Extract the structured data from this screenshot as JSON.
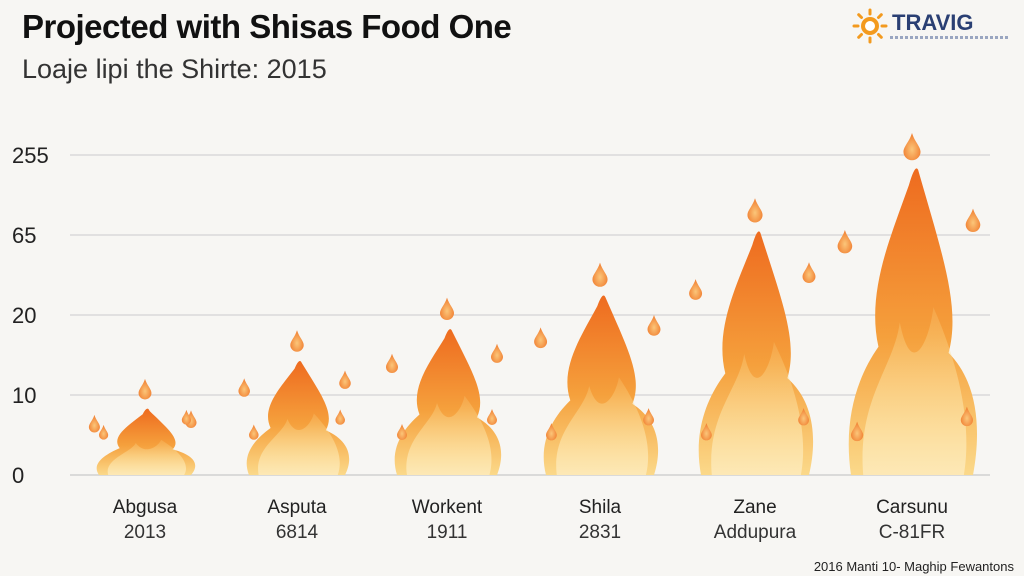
{
  "header": {
    "title": "Projected with Shisas Food One",
    "subtitle": "Loaje lipi the Shirte: 2015"
  },
  "logo": {
    "text": "TRAVIG",
    "icon": "sun-icon",
    "colors": {
      "icon": "#f39a1e",
      "text": "#2a3f73"
    }
  },
  "footnote": "2016 Manti 10- Maghip Fewantons",
  "colors": {
    "flame_top": "#ee6b1f",
    "flame_mid": "#f5a03c",
    "flame_base": "#fbd98a",
    "gridline": "#d4d4d4"
  },
  "chart_data": {
    "type": "bar",
    "title": "Projected with Shisas Food One",
    "subtitle": "Loaje lipi the Shirte: 2015",
    "y_ticks": [
      "0",
      "10",
      "20",
      "65",
      "255"
    ],
    "categories": [
      {
        "label": "Abgusa",
        "sub": "2013"
      },
      {
        "label": "Asputa",
        "sub": "6814"
      },
      {
        "label": "Workent",
        "sub": "1911"
      },
      {
        "label": "Shila",
        "sub": "2831"
      },
      {
        "label": "Zane",
        "sub": "Addupura"
      },
      {
        "label": "Carsunu",
        "sub": "C-81FR"
      }
    ],
    "values": [
      8,
      14,
      18,
      30,
      70,
      220
    ],
    "grid": true,
    "legend": "none"
  }
}
